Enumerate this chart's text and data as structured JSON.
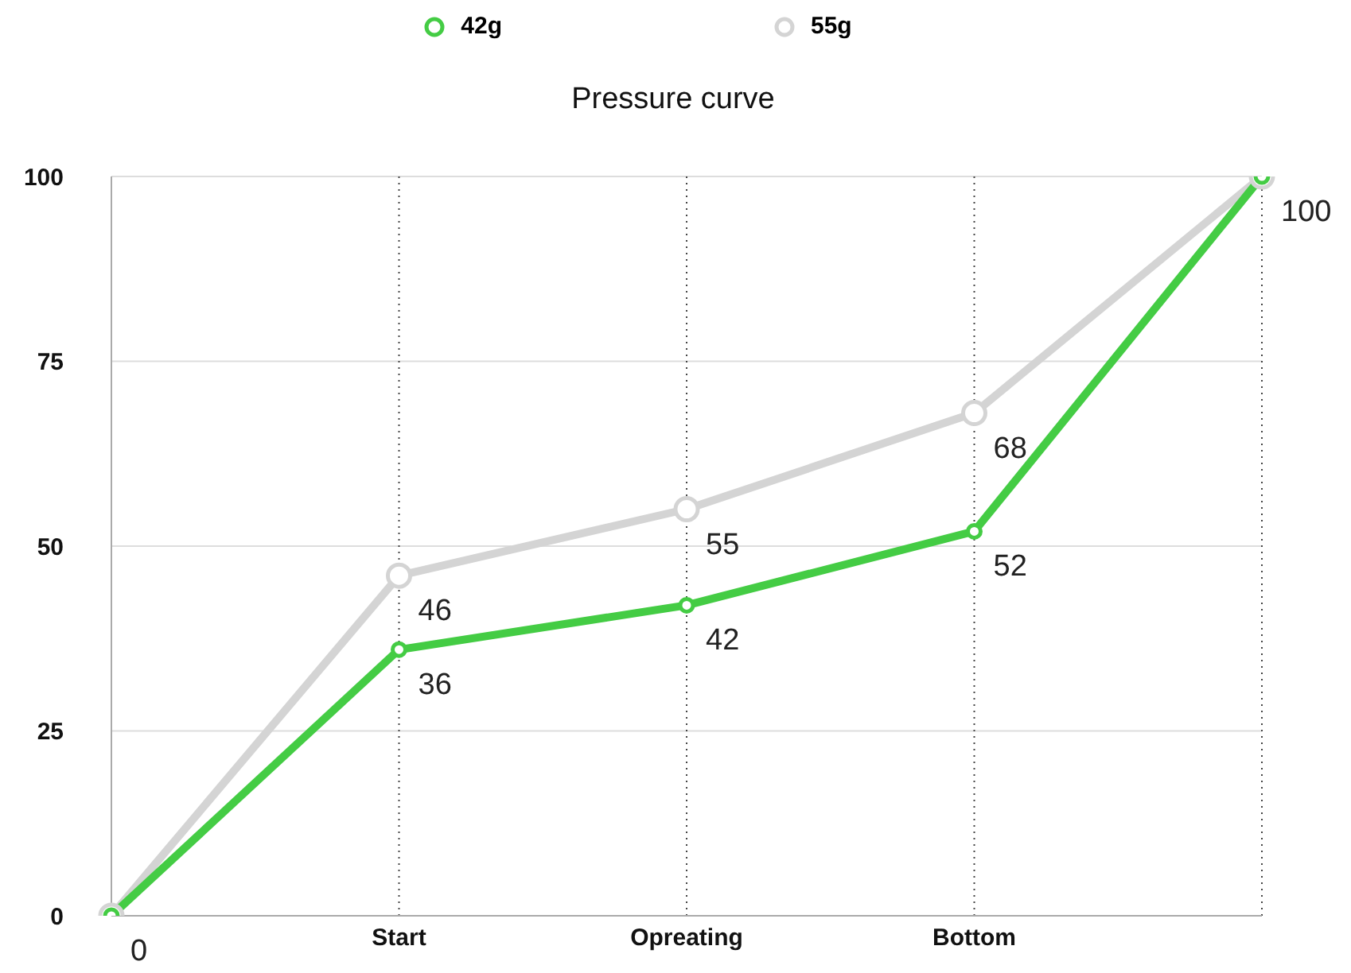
{
  "chart_data": {
    "type": "line",
    "title": "Pressure curve",
    "categories": [
      null,
      "Start",
      "Opreating",
      "Bottom",
      null
    ],
    "series": [
      {
        "name": "55g",
        "color": "#d4d4d4",
        "values": [
          0,
          46,
          55,
          68,
          100
        ],
        "value_labels": [
          null,
          "46",
          "55",
          "68",
          null
        ]
      },
      {
        "name": "42g",
        "color": "#44cc44",
        "values": [
          0,
          36,
          42,
          52,
          100
        ],
        "value_labels": [
          "0",
          "36",
          "42",
          "52",
          "100"
        ]
      }
    ],
    "ylim": [
      0,
      100
    ],
    "yticks": [
      0,
      25,
      50,
      75,
      100
    ],
    "grid": true,
    "legend": "top",
    "marker": "circle",
    "line_style": "solid"
  }
}
